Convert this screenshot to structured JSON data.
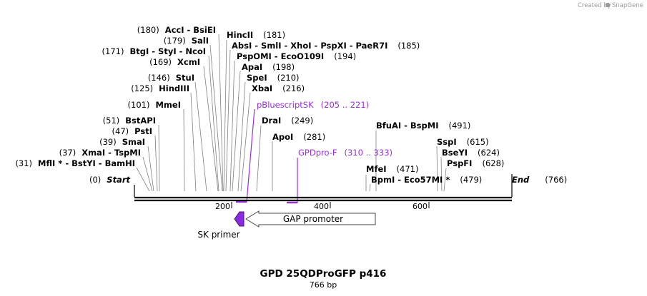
{
  "credit": "Created by",
  "credit_brand": "SnapGene",
  "map": {
    "title": "GPD 25QDProGFP p416",
    "length_label": "766 bp",
    "total_bp": 766
  },
  "ruler": {
    "ticks": [
      200,
      400,
      600
    ],
    "start_label": "Start",
    "start_num": "(0)",
    "end_label": "End",
    "end_num": "(766)"
  },
  "sites": [
    {
      "pre": "(180)",
      "names": "AccI  -  BsiEI",
      "post": ""
    },
    {
      "pre": "(179)",
      "names": "SalI",
      "post": ""
    },
    {
      "pre": "(171)",
      "names": "BtgI  -  StyI  -  NcoI",
      "post": ""
    },
    {
      "pre": "(169)",
      "names": "XcmI",
      "post": ""
    },
    {
      "pre": "(146)",
      "names": "StuI",
      "post": ""
    },
    {
      "pre": "(125)",
      "names": "HindIII",
      "post": ""
    },
    {
      "pre": "(101)",
      "names": "MmeI",
      "post": ""
    },
    {
      "pre": "(51)",
      "names": "BstAPI",
      "post": ""
    },
    {
      "pre": "(47)",
      "names": "PstI",
      "post": ""
    },
    {
      "pre": "(39)",
      "names": "SmaI",
      "post": ""
    },
    {
      "pre": "(37)",
      "names": "XmaI  -  TspMI",
      "post": ""
    },
    {
      "pre": "(31)",
      "names": "MflI *  -  BstYI  -  BamHI",
      "post": ""
    },
    {
      "pre": "",
      "names": "HincII",
      "post": "(181)"
    },
    {
      "pre": "",
      "names": "AbsI  -  SmlI  -  XhoI  -  PspXI  -  PaeR7I",
      "post": "(185)"
    },
    {
      "pre": "",
      "names": "PspOMI  -  EcoO109I",
      "post": "(194)"
    },
    {
      "pre": "",
      "names": "ApaI",
      "post": "(198)"
    },
    {
      "pre": "",
      "names": "SpeI",
      "post": "(210)"
    },
    {
      "pre": "",
      "names": "XbaI",
      "post": "(216)"
    },
    {
      "pre": "",
      "names": "DraI",
      "post": "(249)"
    },
    {
      "pre": "",
      "names": "ApoI",
      "post": "(281)"
    },
    {
      "pre": "",
      "names": "BfuAI  -  BspMI",
      "post": "(491)"
    },
    {
      "pre": "",
      "names": "MfeI",
      "post": "(471)"
    },
    {
      "pre": "",
      "names": "BpmI  -  Eco57MI *",
      "post": "(479)"
    },
    {
      "pre": "",
      "names": "SspI",
      "post": "(615)"
    },
    {
      "pre": "",
      "names": "BseYI",
      "post": "(624)"
    },
    {
      "pre": "",
      "names": "PspFI",
      "post": "(628)"
    }
  ],
  "primers": [
    {
      "name": "pBluescriptSK",
      "range": "(205 .. 221)"
    },
    {
      "name": "GPDpro-F",
      "range": "(310 .. 333)"
    }
  ],
  "features": [
    {
      "name": "GAP promoter"
    },
    {
      "name": "SK primer"
    }
  ],
  "colors": {
    "primer": "#9b30d9",
    "sk_primer": "#8a2be2",
    "line": "#000000",
    "connector": "#808080"
  }
}
